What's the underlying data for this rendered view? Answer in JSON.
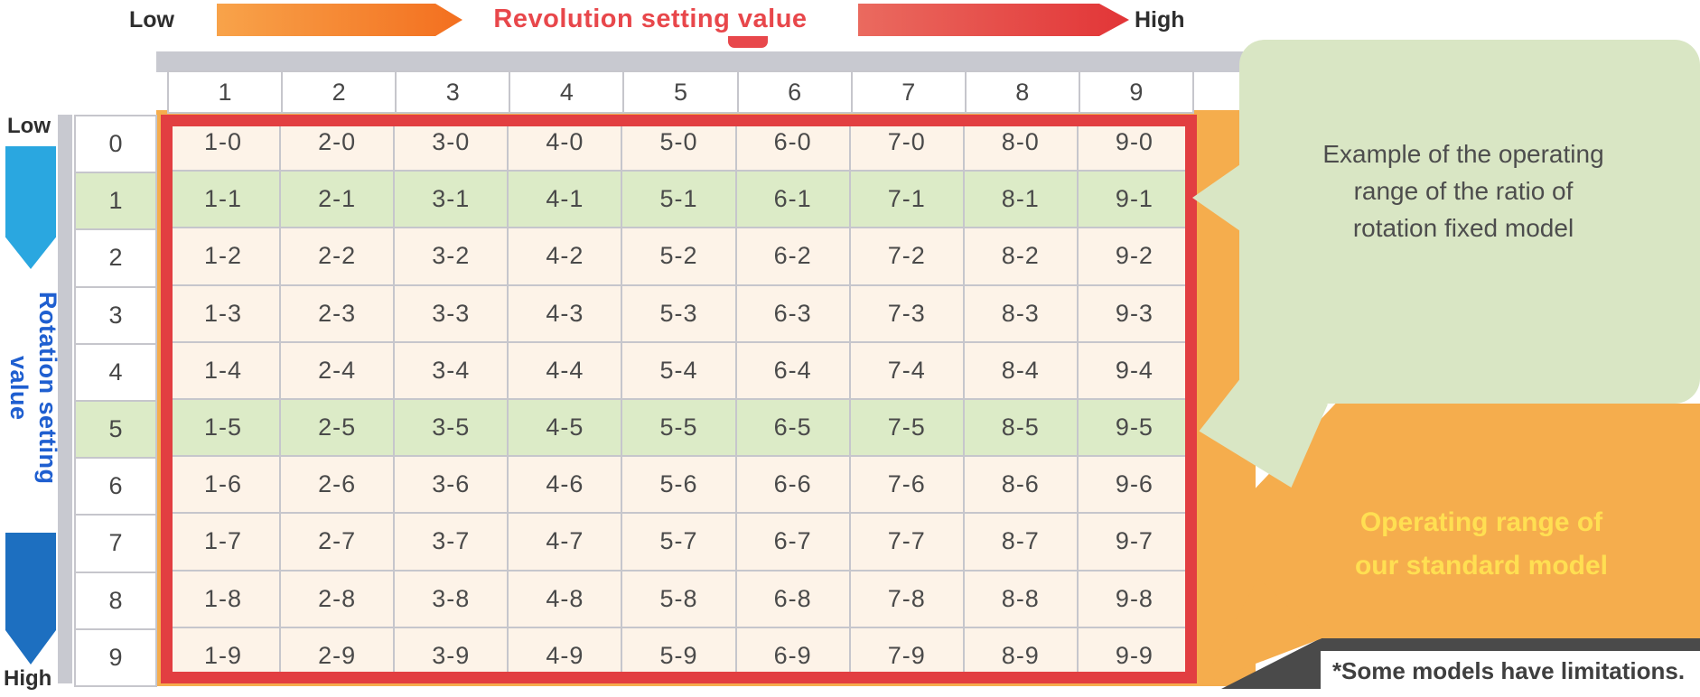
{
  "top_banner": {
    "low_label": "Low",
    "title": "Revolution setting value",
    "high_label": "High"
  },
  "left_banner": {
    "low_label": "Low",
    "title": "Rotation setting value",
    "high_label": "High"
  },
  "table": {
    "col_headers": [
      "1",
      "2",
      "3",
      "4",
      "5",
      "6",
      "7",
      "8",
      "9"
    ],
    "highlighted_rows": [
      "1",
      "5"
    ],
    "rows": [
      {
        "header": "0",
        "highlight": false,
        "cells": [
          "1-0",
          "2-0",
          "3-0",
          "4-0",
          "5-0",
          "6-0",
          "7-0",
          "8-0",
          "9-0"
        ]
      },
      {
        "header": "1",
        "highlight": true,
        "cells": [
          "1-1",
          "2-1",
          "3-1",
          "4-1",
          "5-1",
          "6-1",
          "7-1",
          "8-1",
          "9-1"
        ]
      },
      {
        "header": "2",
        "highlight": false,
        "cells": [
          "1-2",
          "2-2",
          "3-2",
          "4-2",
          "5-2",
          "6-2",
          "7-2",
          "8-2",
          "9-2"
        ]
      },
      {
        "header": "3",
        "highlight": false,
        "cells": [
          "1-3",
          "2-3",
          "3-3",
          "4-3",
          "5-3",
          "6-3",
          "7-3",
          "8-3",
          "9-3"
        ]
      },
      {
        "header": "4",
        "highlight": false,
        "cells": [
          "1-4",
          "2-4",
          "3-4",
          "4-4",
          "5-4",
          "6-4",
          "7-4",
          "8-4",
          "9-4"
        ]
      },
      {
        "header": "5",
        "highlight": true,
        "cells": [
          "1-5",
          "2-5",
          "3-5",
          "4-5",
          "5-5",
          "6-5",
          "7-5",
          "8-5",
          "9-5"
        ]
      },
      {
        "header": "6",
        "highlight": false,
        "cells": [
          "1-6",
          "2-6",
          "3-6",
          "4-6",
          "5-6",
          "6-6",
          "7-6",
          "8-6",
          "9-6"
        ]
      },
      {
        "header": "7",
        "highlight": false,
        "cells": [
          "1-7",
          "2-7",
          "3-7",
          "4-7",
          "5-7",
          "6-7",
          "7-7",
          "8-7",
          "9-7"
        ]
      },
      {
        "header": "8",
        "highlight": false,
        "cells": [
          "1-8",
          "2-8",
          "3-8",
          "4-8",
          "5-8",
          "6-8",
          "7-8",
          "8-8",
          "9-8"
        ]
      },
      {
        "header": "9",
        "highlight": false,
        "cells": [
          "1-9",
          "2-9",
          "3-9",
          "4-9",
          "5-9",
          "6-9",
          "7-9",
          "8-9",
          "9-9"
        ]
      }
    ]
  },
  "green_callout": {
    "line1": "Example of the operating",
    "line2": "range of the ratio of",
    "line3": "rotation fixed model"
  },
  "orange_callout": {
    "line1": "Operating range of",
    "line2": "our standard model"
  },
  "footnote": "*Some models have limitations.",
  "colors": {
    "title_red": "#e8474b",
    "frame_red": "#e23e41",
    "rim_orange": "#f5ad4d",
    "arrow_orange": "#f36f1f",
    "arrow_red": "#e23537",
    "cell_cream": "#fdf3e8",
    "row_highlight_green": "#dcebc7",
    "bubble_green": "#d9e6c4",
    "callout_text_yellow": "#ffdf52",
    "rotation_arrow_blue_light": "#2aa7e0",
    "rotation_arrow_blue_dark": "#1d6fc0",
    "rotation_title_blue": "#1f5fd0",
    "grid_line_gray": "#c6c6cc",
    "backdrop_gray": "#c8c9d0"
  }
}
